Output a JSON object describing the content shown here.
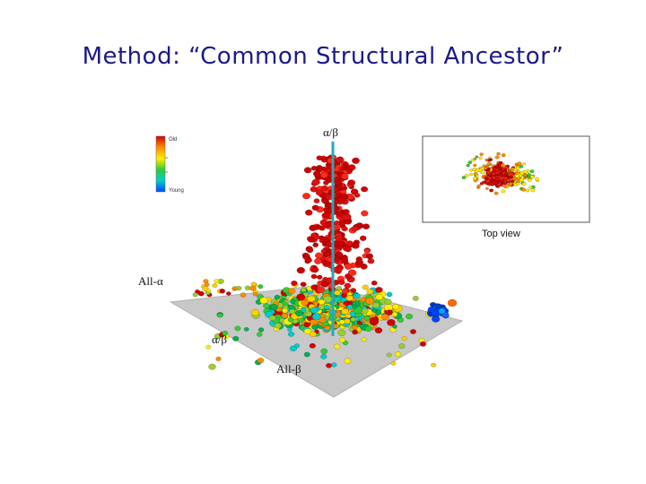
{
  "slide": {
    "title": "Method: “Common Structural Ancestor”"
  },
  "figure": {
    "axis_top_label": "α/β",
    "axis_left_label": "All-α",
    "axis_mid_label": "α/β",
    "axis_bottom_label": "All-β",
    "legend": {
      "top_label": "Old",
      "bottom_label": "Young",
      "colors": [
        "#d40000",
        "#ff8c00",
        "#ffee00",
        "#33cc33",
        "#00cccc",
        "#0044ff"
      ]
    },
    "inset_caption": "Top view",
    "colors": {
      "title": "#1a1a8c",
      "plane": "#c8c8c8",
      "axis": "#2aa7b5"
    }
  }
}
